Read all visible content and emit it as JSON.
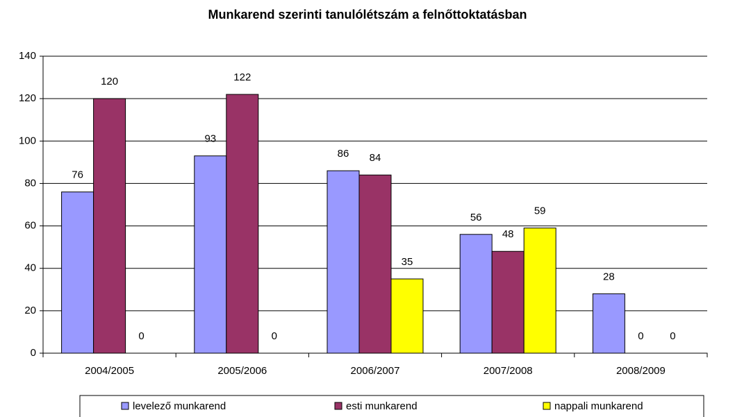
{
  "chart_data": {
    "type": "bar",
    "title": "Munkarend szerinti tanulólétszám a felnőttoktatásban",
    "categories": [
      "2004/2005",
      "2005/2006",
      "2006/2007",
      "2007/2008",
      "2008/2009"
    ],
    "series": [
      {
        "name": "levelező munkarend",
        "color": "#9999ff",
        "values": [
          76,
          93,
          86,
          56,
          28
        ]
      },
      {
        "name": "esti munkarend",
        "color": "#993366",
        "values": [
          120,
          122,
          84,
          48,
          0
        ]
      },
      {
        "name": "nappali munkarend",
        "color": "#ffff00",
        "values": [
          0,
          0,
          35,
          59,
          0
        ]
      }
    ],
    "ylim": [
      0,
      140
    ],
    "yticks": [
      0,
      20,
      40,
      60,
      80,
      100,
      120,
      140
    ],
    "grid": true,
    "legend": "bottom"
  }
}
